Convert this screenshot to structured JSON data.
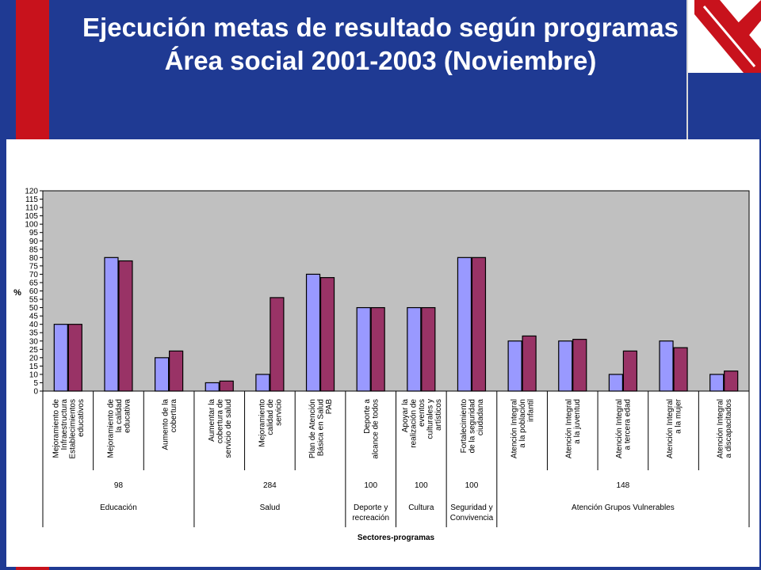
{
  "title": {
    "line1": "Ejecución metas de resultado según programas",
    "line2": "Área social 2001-2003 (Noviembre)"
  },
  "colors": {
    "background": "#1f3a93",
    "accent_red": "#c8121c",
    "series_a": "#9999ff",
    "series_b": "#993366",
    "plot_area": "#c0c0c0"
  },
  "chart_data": {
    "type": "bar",
    "ylabel": "%",
    "xlabel": "Sectores-programas",
    "ylim": [
      0,
      120
    ],
    "ytick_step": 5,
    "grid": false,
    "legend": "none",
    "categories": [
      [
        "Mejoramiento de",
        "Infraestructura",
        "Establecimientos",
        "educativos"
      ],
      [
        "Mejoramiento de",
        "la calidad",
        "educativa"
      ],
      [
        "Aumento de la",
        "cobertura"
      ],
      [
        "Aumentar la",
        "cobertura de",
        "servicio de salud"
      ],
      [
        "Mejoramiento",
        "calidad de",
        "servicio"
      ],
      [
        "Plan de Atención",
        "Básica en Salud",
        "PAB"
      ],
      [
        "Deporte a",
        "alcance de todos"
      ],
      [
        "Apoyar la",
        "realización de",
        "eventos",
        "culturales y",
        "artísticos"
      ],
      [
        "Fortalecimiento",
        "de la seguridad",
        "ciudadana"
      ],
      [
        "Atención Integral",
        "a la población",
        "infantil"
      ],
      [
        "Atención Integral",
        "a la juventud"
      ],
      [
        "Atención Integral",
        "a tercera edad"
      ],
      [
        "Atención Integral",
        "a la mujer"
      ],
      [
        "Atención Integral",
        "a discapacitados"
      ]
    ],
    "series": [
      {
        "values": [
          40,
          80,
          20,
          5,
          10,
          70,
          50,
          50,
          80,
          30,
          30,
          10,
          30,
          10
        ]
      },
      {
        "values": [
          40,
          78,
          24,
          6,
          56,
          68,
          50,
          50,
          80,
          33,
          31,
          24,
          26,
          12
        ]
      }
    ],
    "groups": [
      {
        "label": [
          "Educación"
        ],
        "total": "98",
        "start": 0,
        "end": 2
      },
      {
        "label": [
          "Salud"
        ],
        "total": "284",
        "start": 3,
        "end": 5
      },
      {
        "label": [
          "Deporte y",
          "recreación"
        ],
        "total": "100",
        "start": 6,
        "end": 6
      },
      {
        "label": [
          "Cultura"
        ],
        "total": "100",
        "start": 7,
        "end": 7
      },
      {
        "label": [
          "Seguridad y",
          "Convivencia"
        ],
        "total": "100",
        "start": 8,
        "end": 8
      },
      {
        "label": [
          "Atención Grupos Vulnerables"
        ],
        "total": "148",
        "start": 9,
        "end": 13
      }
    ]
  }
}
